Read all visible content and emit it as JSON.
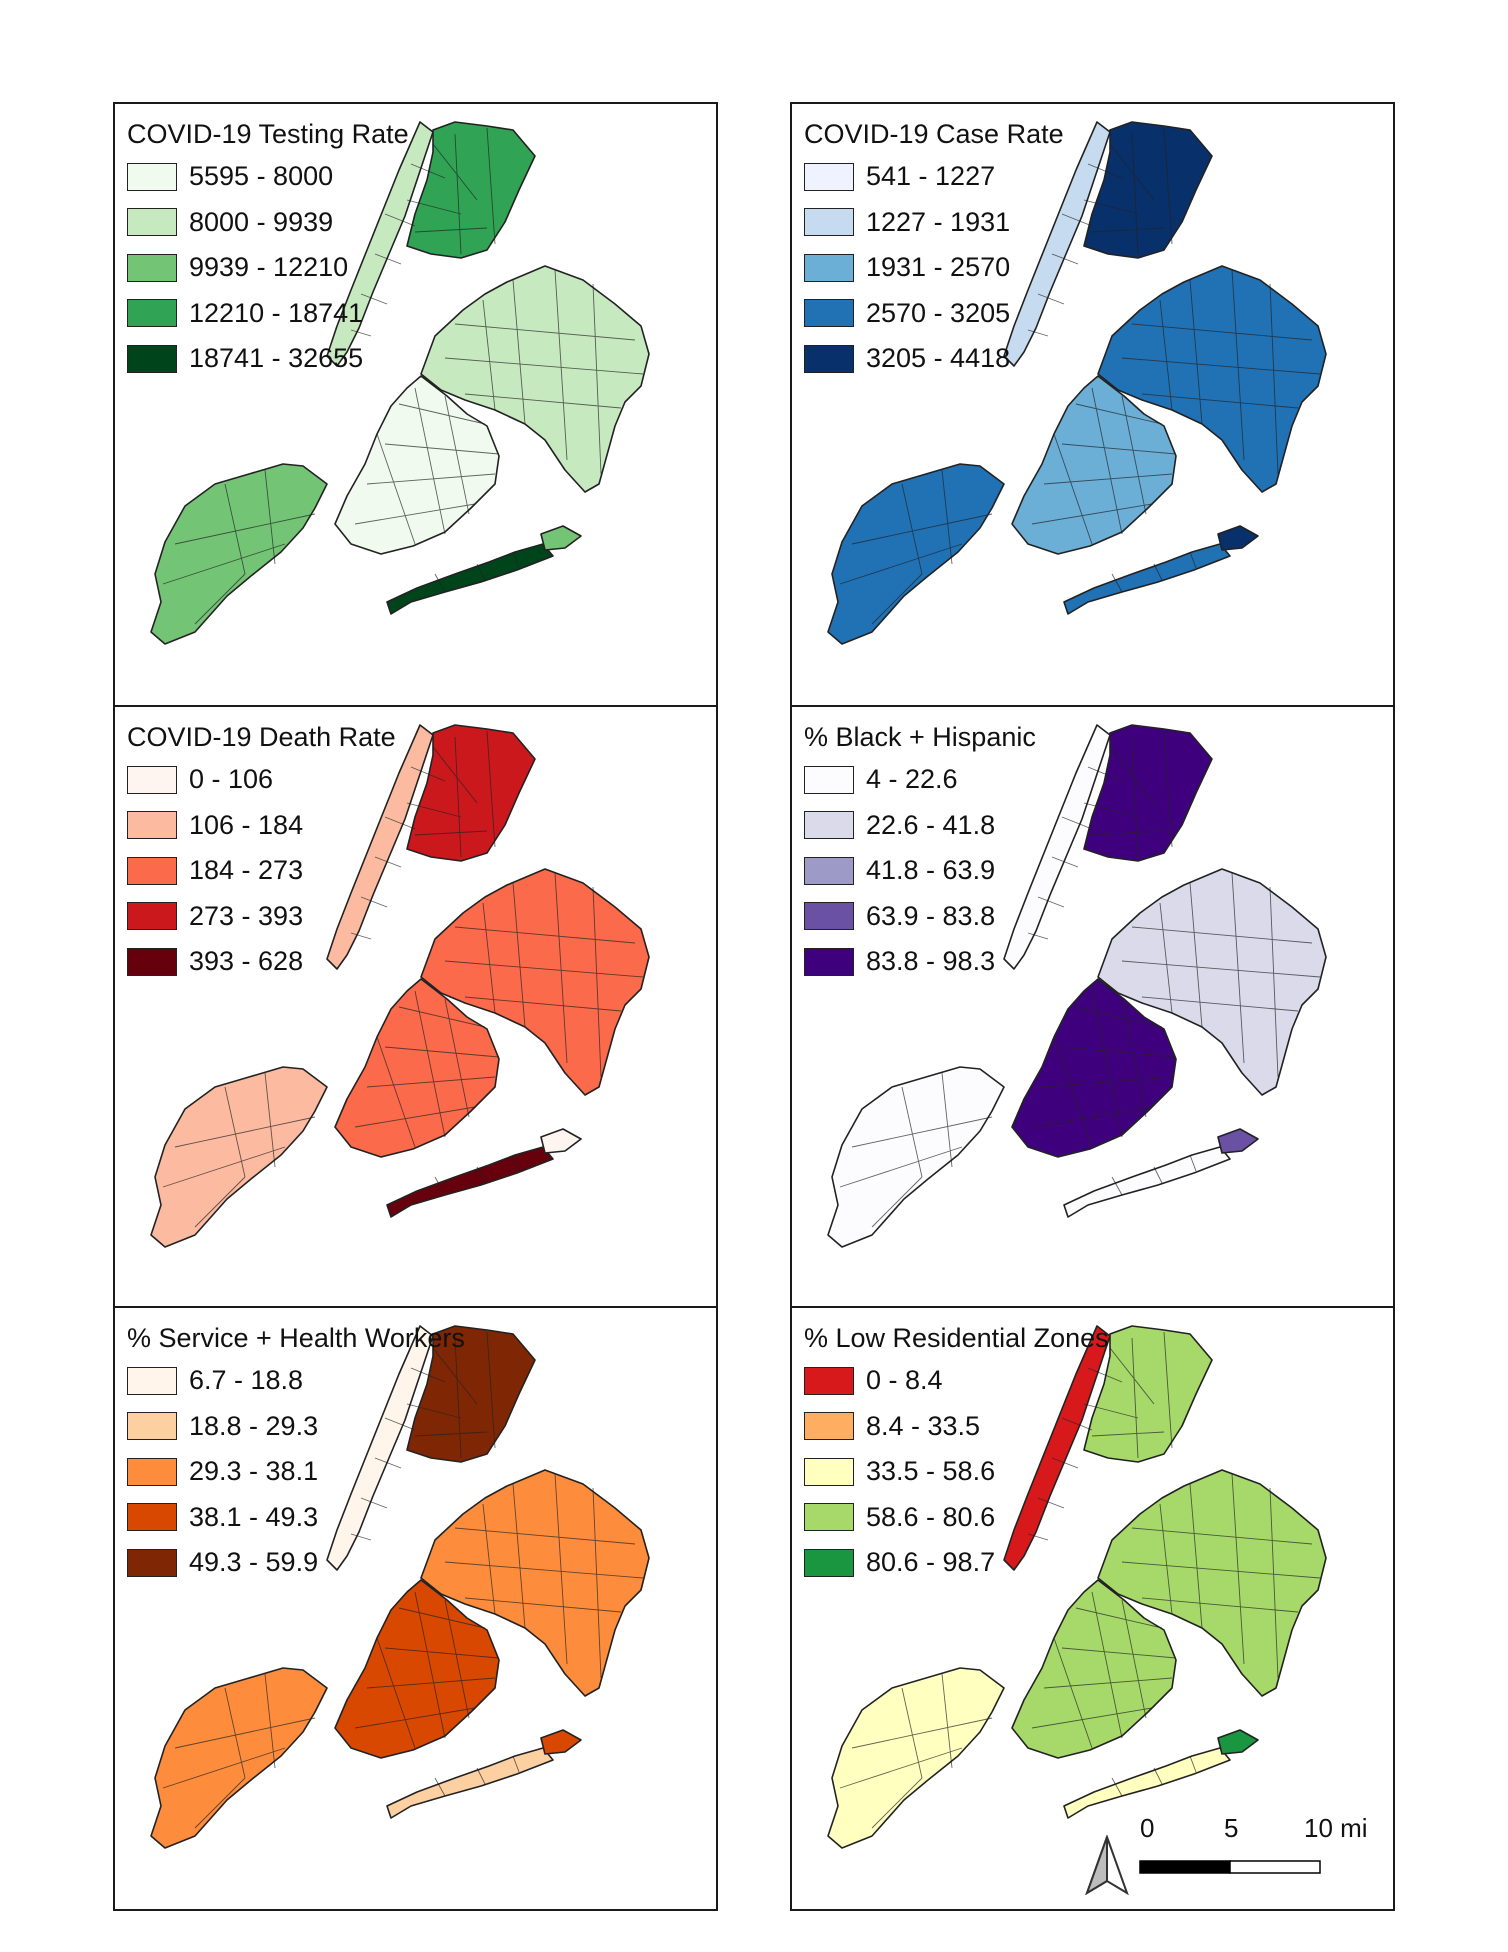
{
  "panels": [
    {
      "title": "COVID-19 Testing Rate",
      "classes": [
        {
          "label": "5595 - 8000",
          "color": "#f1faee"
        },
        {
          "label": "8000 - 9939",
          "color": "#c7e9c0"
        },
        {
          "label": "9939 - 12210",
          "color": "#74c476"
        },
        {
          "label": "12210 - 18741",
          "color": "#31a354"
        },
        {
          "label": "18741 - 32655",
          "color": "#00441b"
        }
      ],
      "fill_classes": {
        "manhattan": 1,
        "bronx": 3,
        "queens": 1,
        "brooklyn": 0,
        "staten": 2,
        "rockaway": 4,
        "extra": 2
      }
    },
    {
      "title": "COVID-19 Case Rate",
      "classes": [
        {
          "label": "541 - 1227",
          "color": "#eff3ff"
        },
        {
          "label": "1227 - 1931",
          "color": "#c6dbef"
        },
        {
          "label": "1931 - 2570",
          "color": "#6baed6"
        },
        {
          "label": "2570 - 3205",
          "color": "#2171b5"
        },
        {
          "label": "3205 - 4418",
          "color": "#08306b"
        }
      ],
      "fill_classes": {
        "manhattan": 1,
        "bronx": 4,
        "queens": 3,
        "brooklyn": 2,
        "staten": 3,
        "rockaway": 3,
        "extra": 4
      }
    },
    {
      "title": "COVID-19 Death Rate",
      "classes": [
        {
          "label": "0 - 106",
          "color": "#fff5f0"
        },
        {
          "label": "106 - 184",
          "color": "#fcbba1"
        },
        {
          "label": "184 - 273",
          "color": "#fb6a4a"
        },
        {
          "label": "273 - 393",
          "color": "#cb181d"
        },
        {
          "label": "393 - 628",
          "color": "#67000d"
        }
      ],
      "fill_classes": {
        "manhattan": 1,
        "bronx": 3,
        "queens": 2,
        "brooklyn": 2,
        "staten": 1,
        "rockaway": 4,
        "extra": 0
      }
    },
    {
      "title": "% Black + Hispanic",
      "classes": [
        {
          "label": "4 - 22.6",
          "color": "#fcfbfd"
        },
        {
          "label": "22.6 - 41.8",
          "color": "#dadaeb"
        },
        {
          "label": "41.8 - 63.9",
          "color": "#9e9ac8"
        },
        {
          "label": "63.9 - 83.8",
          "color": "#6a51a3"
        },
        {
          "label": "83.8 - 98.3",
          "color": "#3f007d"
        }
      ],
      "fill_classes": {
        "manhattan": 0,
        "bronx": 4,
        "queens": 1,
        "brooklyn": 4,
        "staten": 0,
        "rockaway": 0,
        "extra": 3
      }
    },
    {
      "title": "% Service + Health Workers",
      "classes": [
        {
          "label": "6.7 - 18.8",
          "color": "#fff5eb"
        },
        {
          "label": "18.8 - 29.3",
          "color": "#fdd0a2"
        },
        {
          "label": "29.3 - 38.1",
          "color": "#fd8d3c"
        },
        {
          "label": "38.1 - 49.3",
          "color": "#d94801"
        },
        {
          "label": "49.3 - 59.9",
          "color": "#7f2704"
        }
      ],
      "fill_classes": {
        "manhattan": 0,
        "bronx": 4,
        "queens": 2,
        "brooklyn": 3,
        "staten": 2,
        "rockaway": 1,
        "extra": 3
      }
    },
    {
      "title": "% Low Residential Zones",
      "classes": [
        {
          "label": "0 - 8.4",
          "color": "#d7191c"
        },
        {
          "label": "8.4 - 33.5",
          "color": "#fdae61"
        },
        {
          "label": "33.5 - 58.6",
          "color": "#ffffbf"
        },
        {
          "label": "58.6 - 80.6",
          "color": "#a6d96a"
        },
        {
          "label": "80.6 - 98.7",
          "color": "#1a9641"
        }
      ],
      "fill_classes": {
        "manhattan": 0,
        "bronx": 3,
        "queens": 3,
        "brooklyn": 3,
        "staten": 2,
        "rockaway": 2,
        "extra": 4
      }
    }
  ],
  "scale": {
    "labels": [
      "0",
      "5",
      "10 mi"
    ]
  },
  "icons": {
    "north_arrow": "north-arrow-icon"
  },
  "colors": {
    "frame": "#1a1a1a",
    "outline": "#222222"
  }
}
